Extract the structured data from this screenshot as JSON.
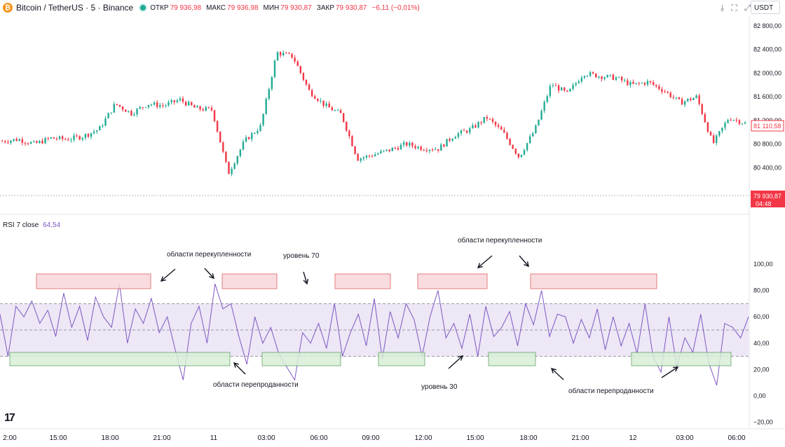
{
  "header": {
    "coin_glyph": "₿",
    "symbol": "Bitcoin / TetherUS · 5 · Binance",
    "ohlc": [
      {
        "label": "ОТКР",
        "value": "79 936,98"
      },
      {
        "label": "МАКС",
        "value": "79 936,98"
      },
      {
        "label": "МИН",
        "value": "79 930,87"
      },
      {
        "label": "ЗАКР",
        "value": "79 930,87"
      }
    ],
    "change": "−6,11 (−0,01%)",
    "currency": "USDT",
    "icons": [
      "download-icon",
      "fullscreen-icon",
      "expand-icon"
    ]
  },
  "rsi_label": {
    "name": "RSI 7 close",
    "value": "64,54"
  },
  "price_badges": {
    "last": "81 110,58",
    "current": "79 930,87",
    "countdown": "04:48"
  },
  "colors": {
    "up": "#22ab94",
    "down": "#f23645",
    "rsi_line": "#7e57c2",
    "band": "#ede7f6",
    "overbought_box": "#f8d7da",
    "oversold_box": "#d8efd8"
  },
  "annotations": {
    "overbought": "области перекупленности",
    "oversold": "области перепроданности",
    "level70": "уровень 70",
    "level30": "уровень 30"
  },
  "chart_data": [
    {
      "type": "candlestick",
      "title": "Bitcoin / TetherUS · 5 · Binance",
      "y_ticks": [
        "82 800,00",
        "82 400,00",
        "82 000,00",
        "81 600,00",
        "81 200,00",
        "80 800,00",
        "80 400,00",
        "80 000,00"
      ],
      "ylim": [
        79800,
        82900
      ],
      "x_ticks": [
        "2:00",
        "15:00",
        "18:00",
        "21:00",
        "11",
        "03:00",
        "06:00",
        "09:00",
        "12:00",
        "15:00",
        "18:00",
        "21:00",
        "12",
        "03:00",
        "06:00"
      ],
      "close_path": [
        80850,
        80880,
        80800,
        80900,
        80880,
        80930,
        81050,
        81480,
        81320,
        81480,
        81450,
        81550,
        81400,
        81380,
        80300,
        80850,
        81100,
        82350,
        82280,
        81700,
        81450,
        81300,
        80550,
        80620,
        80700,
        80800,
        80730,
        80720,
        80950,
        81050,
        81250,
        81000,
        80580,
        81050,
        81820,
        81650,
        82000,
        81950,
        81920,
        81800,
        81850,
        81700,
        81500,
        81600,
        80800,
        81250,
        81150
      ]
    },
    {
      "type": "line",
      "title": "RSI 7 close",
      "y_ticks": [
        "100,00",
        "80,00",
        "60,00",
        "40,00",
        "20,00",
        "0,00",
        "−20,00"
      ],
      "ylim": [
        -20,
        100
      ],
      "levels": {
        "upper": 70,
        "middle": 50,
        "lower": 30
      },
      "rsi_path": [
        62,
        30,
        68,
        60,
        72,
        55,
        65,
        45,
        78,
        52,
        68,
        42,
        75,
        60,
        52,
        85,
        40,
        66,
        55,
        74,
        48,
        60,
        35,
        12,
        55,
        68,
        40,
        85,
        66,
        70,
        45,
        24,
        60,
        40,
        52,
        32,
        22,
        12,
        48,
        40,
        55,
        36,
        70,
        30,
        48,
        62,
        38,
        74,
        28,
        64,
        44,
        70,
        58,
        30,
        60,
        80,
        44,
        55,
        36,
        62,
        30,
        68,
        45,
        52,
        64,
        38,
        70,
        54,
        80,
        45,
        62,
        60,
        40,
        58,
        44,
        66,
        35,
        60,
        38,
        55,
        32,
        70,
        30,
        18,
        60,
        22,
        44,
        33,
        62,
        25,
        8,
        55,
        52,
        44,
        60
      ]
    }
  ]
}
